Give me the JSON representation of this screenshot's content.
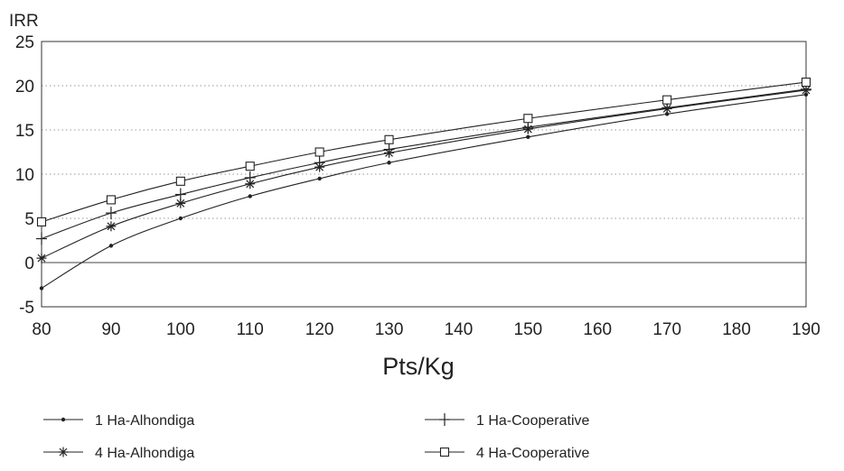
{
  "chart_data": {
    "type": "line",
    "title": "",
    "xlabel": "Pts/Kg",
    "ylabel": "IRR",
    "xlim": [
      80,
      190
    ],
    "ylim": [
      -5,
      25
    ],
    "x_ticks": [
      80,
      90,
      100,
      110,
      120,
      130,
      140,
      150,
      160,
      170,
      180,
      190
    ],
    "y_ticks": [
      -5,
      0,
      5,
      10,
      15,
      20,
      25
    ],
    "grid": "horizontal dotted",
    "legend_position": "bottom",
    "x": [
      80,
      90,
      100,
      110,
      120,
      130,
      150,
      170,
      190
    ],
    "series": [
      {
        "name": "1 Ha-Alhondiga",
        "marker": "dot",
        "values": [
          -2.9,
          1.9,
          5.0,
          7.5,
          9.5,
          11.3,
          14.2,
          16.8,
          19.0
        ]
      },
      {
        "name": "1 Ha-Cooperative",
        "marker": "plus",
        "values": [
          2.7,
          5.6,
          7.7,
          9.6,
          11.3,
          12.8,
          15.3,
          17.5,
          19.6
        ]
      },
      {
        "name": "4 Ha-Alhondiga",
        "marker": "asterisk",
        "values": [
          0.5,
          4.1,
          6.7,
          8.9,
          10.8,
          12.4,
          15.1,
          17.4,
          19.5
        ]
      },
      {
        "name": "4 Ha-Cooperative",
        "marker": "square",
        "values": [
          4.6,
          7.1,
          9.2,
          10.9,
          12.5,
          13.9,
          16.3,
          18.4,
          20.4
        ]
      }
    ]
  }
}
